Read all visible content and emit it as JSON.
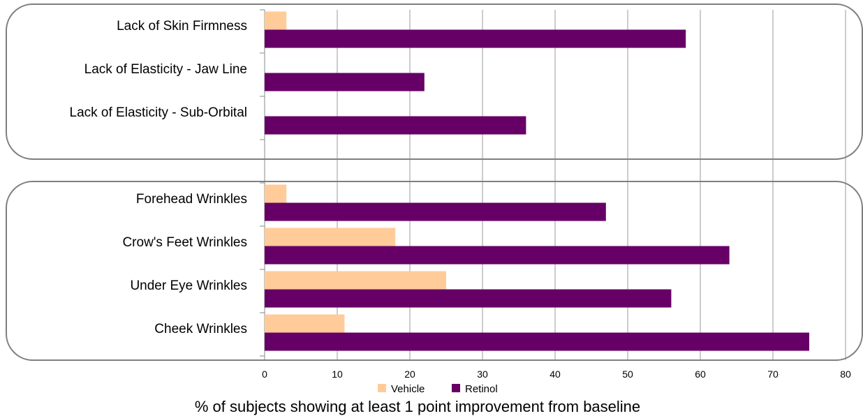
{
  "chart_data": {
    "type": "bar",
    "orientation": "horizontal",
    "categories": [
      "Lack of Skin Firmness",
      "Lack of Elasticity - Jaw Line",
      "Lack of Elasticity - Sub-Orbital",
      "Forehead Wrinkles",
      "Crow's Feet Wrinkles",
      "Under Eye Wrinkles",
      "Cheek Wrinkles"
    ],
    "series": [
      {
        "name": "Vehicle",
        "color": "#FFCC99",
        "values": [
          3,
          0,
          0,
          3,
          18,
          25,
          11
        ]
      },
      {
        "name": "Retinol",
        "color": "#660066",
        "values": [
          58,
          22,
          36,
          47,
          64,
          56,
          75
        ]
      }
    ],
    "xlabel": "% of subjects showing at least 1 point improvement from baseline",
    "xlim": [
      0,
      80
    ],
    "xticks": [
      "0",
      "10",
      "20",
      "30",
      "40",
      "50",
      "60",
      "70",
      "80"
    ],
    "grid": "vertical",
    "legend_position": "bottom",
    "groups": [
      {
        "categories": [
          "Lack of Skin Firmness",
          "Lack of Elasticity - Jaw Line",
          "Lack of Elasticity - Sub-Orbital"
        ]
      },
      {
        "categories": [
          "Forehead Wrinkles",
          "Crow's Feet Wrinkles",
          "Under Eye Wrinkles",
          "Cheek Wrinkles"
        ]
      }
    ]
  }
}
